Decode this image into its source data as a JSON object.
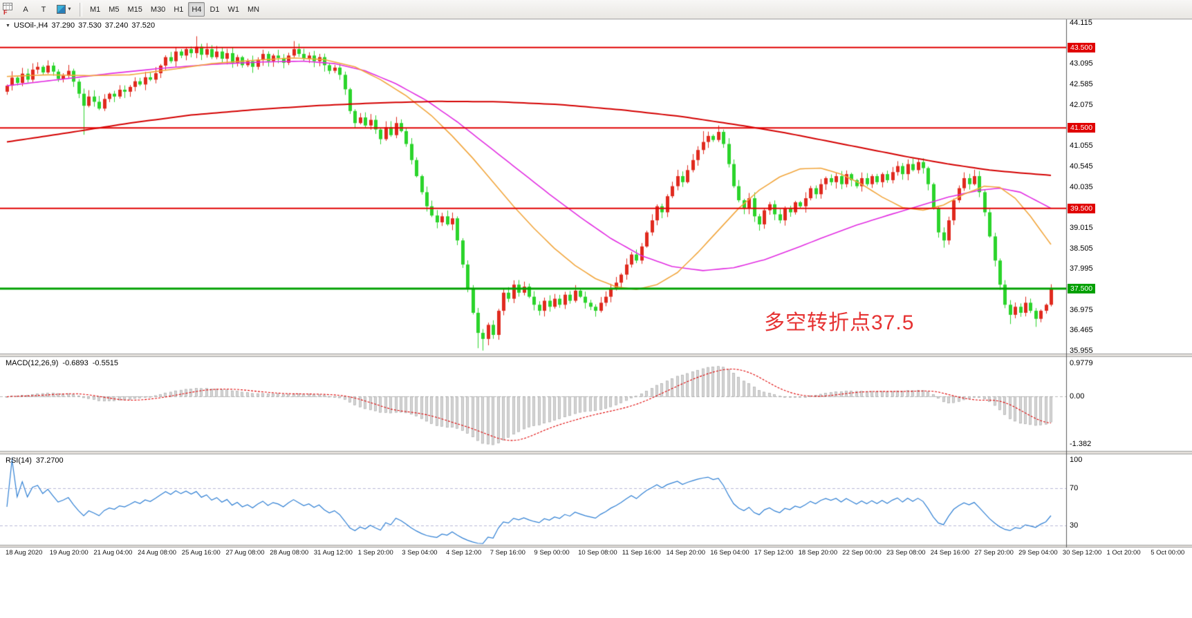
{
  "toolbar": {
    "dock_label": "F",
    "tools": {
      "text_a": "A",
      "text_t": "T"
    },
    "timeframes": [
      {
        "label": "M1",
        "active": false
      },
      {
        "label": "M5",
        "active": false
      },
      {
        "label": "M15",
        "active": false
      },
      {
        "label": "M30",
        "active": false
      },
      {
        "label": "H1",
        "active": false
      },
      {
        "label": "H4",
        "active": true
      },
      {
        "label": "D1",
        "active": false
      },
      {
        "label": "W1",
        "active": false
      },
      {
        "label": "MN",
        "active": false
      }
    ]
  },
  "quote_header": {
    "marker": "▼",
    "symbol": "USOil-,H4",
    "open": "37.290",
    "high": "37.530",
    "low": "37.240",
    "close": "37.520"
  },
  "annotation": {
    "text": "多空转折点37.5",
    "color": "#e63232"
  },
  "price_axis": {
    "labels": [
      "44.115",
      "43.095",
      "42.585",
      "42.075",
      "41.055",
      "40.545",
      "40.035",
      "39.015",
      "38.505",
      "37.995",
      "36.975",
      "36.465",
      "35.955"
    ]
  },
  "levels": [
    {
      "label": "43.500",
      "value": 43.5,
      "color": "#e00000",
      "line_width": 2
    },
    {
      "label": "41.500",
      "value": 41.5,
      "color": "#e00000",
      "line_width": 2
    },
    {
      "label": "39.500",
      "value": 39.5,
      "color": "#e00000",
      "line_width": 2
    },
    {
      "label": "37.500",
      "value": 37.5,
      "color": "#00a000",
      "line_width": 3
    }
  ],
  "macd_panel": {
    "name": "MACD(12,26,9)",
    "value_main": "-0.6893",
    "value_signal": "-0.5515",
    "fast": 12,
    "slow": 26,
    "signal": 9,
    "axis_labels": [
      {
        "text": "0.9779",
        "value": 0.9779
      },
      {
        "text": "0.00",
        "value": 0
      },
      {
        "text": "-1.382",
        "value": -1.382
      }
    ]
  },
  "rsi_panel": {
    "name": "RSI(14)",
    "value": "37.2700",
    "period": 14,
    "axis_labels": [
      {
        "text": "100",
        "value": 100
      },
      {
        "text": "70",
        "value": 70
      },
      {
        "text": "30",
        "value": 30
      }
    ],
    "level_lines": [
      70,
      30
    ]
  },
  "time_axis": {
    "labels": [
      "18 Aug 2020",
      "19 Aug 20:00",
      "21 Aug 04:00",
      "24 Aug 08:00",
      "25 Aug 16:00",
      "27 Aug 08:00",
      "28 Aug 08:00",
      "31 Aug 12:00",
      "1 Sep 20:00",
      "3 Sep 04:00",
      "4 Sep 12:00",
      "7 Sep 16:00",
      "9 Sep 00:00",
      "10 Sep 08:00",
      "11 Sep 16:00",
      "14 Sep 20:00",
      "16 Sep 04:00",
      "17 Sep 12:00",
      "18 Sep 20:00",
      "22 Sep 00:00",
      "23 Sep 08:00",
      "24 Sep 16:00",
      "27 Sep 20:00",
      "29 Sep 04:00",
      "30 Sep 12:00",
      "1 Oct 20:00",
      "5 Oct 00:00"
    ]
  },
  "chart_data": {
    "type": "candlestick",
    "title": "USOil- H4",
    "ylim": [
      35.955,
      44.115
    ],
    "first_open": 42.4,
    "closes": [
      42.55,
      42.75,
      42.62,
      42.85,
      42.7,
      42.95,
      43.02,
      42.88,
      43.05,
      42.9,
      42.72,
      42.8,
      42.92,
      42.65,
      42.35,
      42.05,
      42.28,
      42.15,
      41.98,
      42.22,
      42.35,
      42.28,
      42.45,
      42.4,
      42.52,
      42.66,
      42.58,
      42.76,
      42.7,
      42.86,
      43.05,
      43.26,
      43.16,
      43.4,
      43.3,
      43.46,
      43.36,
      43.52,
      43.32,
      43.46,
      43.26,
      43.4,
      43.22,
      43.36,
      43.12,
      43.26,
      43.06,
      43.16,
      43.02,
      43.2,
      43.34,
      43.16,
      43.3,
      43.24,
      43.12,
      43.3,
      43.46,
      43.34,
      43.22,
      43.3,
      43.16,
      43.26,
      43.06,
      42.92,
      43.0,
      42.82,
      42.46,
      41.92,
      41.62,
      41.76,
      41.56,
      41.7,
      41.46,
      41.22,
      41.52,
      41.32,
      41.62,
      41.42,
      41.1,
      40.7,
      40.3,
      39.9,
      39.55,
      39.32,
      39.15,
      39.3,
      39.1,
      39.25,
      38.7,
      38.1,
      37.5,
      36.9,
      36.4,
      36.25,
      36.6,
      36.35,
      36.95,
      37.4,
      37.25,
      37.6,
      37.4,
      37.55,
      37.3,
      37.1,
      36.95,
      37.2,
      37.05,
      37.25,
      37.1,
      37.35,
      37.2,
      37.45,
      37.3,
      37.15,
      37.05,
      36.95,
      37.15,
      37.3,
      37.5,
      37.65,
      37.85,
      38.1,
      38.35,
      38.2,
      38.55,
      38.9,
      39.2,
      39.55,
      39.4,
      39.8,
      40.05,
      40.3,
      40.15,
      40.45,
      40.7,
      40.95,
      41.15,
      41.3,
      41.2,
      41.4,
      41.1,
      40.6,
      40.05,
      39.7,
      39.5,
      39.75,
      39.3,
      39.1,
      39.45,
      39.6,
      39.35,
      39.2,
      39.5,
      39.4,
      39.65,
      39.55,
      39.75,
      40.0,
      39.85,
      40.1,
      40.25,
      40.15,
      40.3,
      40.1,
      40.35,
      40.2,
      40.05,
      40.25,
      40.1,
      40.3,
      40.15,
      40.35,
      40.2,
      40.4,
      40.55,
      40.35,
      40.6,
      40.45,
      40.65,
      40.5,
      40.1,
      39.5,
      38.9,
      38.7,
      39.2,
      39.7,
      40.0,
      40.25,
      40.1,
      40.3,
      39.9,
      39.4,
      38.8,
      38.2,
      37.6,
      37.1,
      36.85,
      37.05,
      36.9,
      37.15,
      36.95,
      36.75,
      36.95,
      37.1,
      37.52
    ],
    "wick_overrides": {
      "15": {
        "l": 41.33
      },
      "37": {
        "h": 43.78
      },
      "56": {
        "h": 43.66
      },
      "66": {
        "h": 42.9
      },
      "92": {
        "l": 36.02
      },
      "93": {
        "l": 35.96
      },
      "136": {
        "h": 41.42
      },
      "139": {
        "h": 41.56
      },
      "177": {
        "h": 40.74
      },
      "183": {
        "l": 38.52
      },
      "189": {
        "h": 40.46
      },
      "196": {
        "l": 36.62
      },
      "201": {
        "l": 36.55
      }
    },
    "moving_averages": [
      {
        "name": "ma-mid-magenta",
        "color": "#e22ce2",
        "width": 1.6,
        "points": [
          [
            0,
            42.55
          ],
          [
            10,
            42.7
          ],
          [
            20,
            42.85
          ],
          [
            30,
            42.98
          ],
          [
            40,
            43.08
          ],
          [
            50,
            43.14
          ],
          [
            58,
            43.16
          ],
          [
            64,
            43.1
          ],
          [
            70,
            42.92
          ],
          [
            76,
            42.6
          ],
          [
            82,
            42.18
          ],
          [
            88,
            41.65
          ],
          [
            94,
            41.05
          ],
          [
            100,
            40.45
          ],
          [
            106,
            39.85
          ],
          [
            112,
            39.28
          ],
          [
            118,
            38.75
          ],
          [
            124,
            38.32
          ],
          [
            130,
            38.05
          ],
          [
            136,
            37.95
          ],
          [
            142,
            38.02
          ],
          [
            148,
            38.22
          ],
          [
            154,
            38.5
          ],
          [
            160,
            38.8
          ],
          [
            166,
            39.08
          ],
          [
            172,
            39.32
          ],
          [
            178,
            39.55
          ],
          [
            184,
            39.78
          ],
          [
            190,
            39.95
          ],
          [
            194,
            40.0
          ],
          [
            198,
            39.9
          ],
          [
            201,
            39.7
          ],
          [
            204,
            39.5
          ]
        ]
      },
      {
        "name": "ma-fast-orange",
        "color": "#f2a63c",
        "width": 1.6,
        "points": [
          [
            0,
            42.78
          ],
          [
            8,
            42.82
          ],
          [
            16,
            42.8
          ],
          [
            24,
            42.82
          ],
          [
            32,
            42.95
          ],
          [
            40,
            43.1
          ],
          [
            48,
            43.18
          ],
          [
            56,
            43.24
          ],
          [
            62,
            43.2
          ],
          [
            68,
            43.02
          ],
          [
            73,
            42.7
          ],
          [
            78,
            42.3
          ],
          [
            83,
            41.8
          ],
          [
            87,
            41.3
          ],
          [
            91,
            40.75
          ],
          [
            95,
            40.15
          ],
          [
            99,
            39.55
          ],
          [
            103,
            39.0
          ],
          [
            107,
            38.5
          ],
          [
            111,
            38.08
          ],
          [
            115,
            37.75
          ],
          [
            119,
            37.55
          ],
          [
            123,
            37.48
          ],
          [
            127,
            37.6
          ],
          [
            131,
            37.9
          ],
          [
            135,
            38.4
          ],
          [
            139,
            38.95
          ],
          [
            143,
            39.5
          ],
          [
            147,
            39.95
          ],
          [
            151,
            40.28
          ],
          [
            155,
            40.48
          ],
          [
            159,
            40.5
          ],
          [
            163,
            40.35
          ],
          [
            167,
            40.1
          ],
          [
            171,
            39.78
          ],
          [
            175,
            39.52
          ],
          [
            179,
            39.45
          ],
          [
            183,
            39.58
          ],
          [
            187,
            39.85
          ],
          [
            191,
            40.05
          ],
          [
            194,
            40.02
          ],
          [
            197,
            39.75
          ],
          [
            200,
            39.3
          ],
          [
            202,
            38.95
          ],
          [
            204,
            38.6
          ]
        ]
      },
      {
        "name": "ma-slow-red",
        "color": "#d40000",
        "width": 2,
        "points": [
          [
            0,
            41.15
          ],
          [
            12,
            41.38
          ],
          [
            24,
            41.62
          ],
          [
            36,
            41.82
          ],
          [
            48,
            41.95
          ],
          [
            60,
            42.05
          ],
          [
            72,
            42.12
          ],
          [
            84,
            42.16
          ],
          [
            96,
            42.15
          ],
          [
            108,
            42.08
          ],
          [
            120,
            41.95
          ],
          [
            132,
            41.78
          ],
          [
            144,
            41.55
          ],
          [
            152,
            41.38
          ],
          [
            160,
            41.18
          ],
          [
            168,
            40.98
          ],
          [
            176,
            40.78
          ],
          [
            184,
            40.6
          ],
          [
            192,
            40.45
          ],
          [
            198,
            40.38
          ],
          [
            204,
            40.32
          ]
        ]
      }
    ],
    "indicators": {
      "macd": {
        "fast": 12,
        "slow": 26,
        "signal": 9
      },
      "rsi": {
        "period": 14
      }
    },
    "colors": {
      "up": "#e02a1e",
      "down": "#2bd42b",
      "macd_hist": "#d6d6d6",
      "macd_hist_border": "#9f9f9f",
      "macd_signal": "#e00000",
      "rsi_line": "#2e7fd4",
      "level_dash": "#b8b8d8"
    }
  }
}
